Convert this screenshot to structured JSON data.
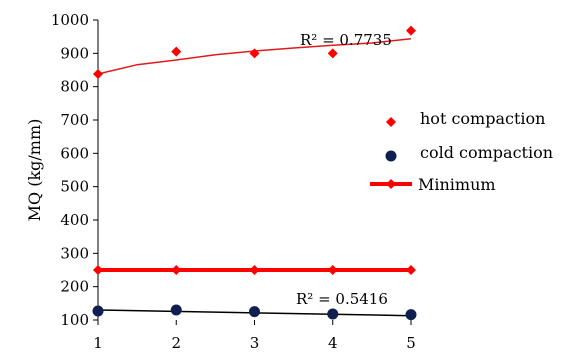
{
  "chart_data": {
    "type": "scatter",
    "title": "",
    "xlabel": "",
    "ylabel": "MQ (kg/mm)",
    "xlim": [
      1,
      5
    ],
    "ylim": [
      100,
      1000
    ],
    "xticks": [
      "1",
      "2",
      "3",
      "4",
      "5"
    ],
    "yticks": [
      "100",
      "200",
      "300",
      "400",
      "500",
      "600",
      "700",
      "800",
      "900",
      "1000"
    ],
    "grid": false,
    "legend_position": "right",
    "series": [
      {
        "name": "hot compaction",
        "marker": "diamond",
        "color": "#ff0000",
        "x": [
          1,
          2,
          3,
          4,
          5
        ],
        "y": [
          838,
          905,
          900,
          900,
          968
        ]
      },
      {
        "name": "cold compaction",
        "marker": "circle",
        "color": "#0f1f4f",
        "x": [
          1,
          2,
          3,
          4,
          5
        ],
        "y": [
          127,
          130,
          125,
          118,
          116
        ]
      },
      {
        "name": "Minimum",
        "marker": "diamond",
        "line": true,
        "color": "#ff0000",
        "x": [
          1,
          2,
          3,
          4,
          5
        ],
        "y": [
          250,
          250,
          250,
          250,
          250
        ]
      }
    ],
    "trendlines": [
      {
        "series": "hot compaction",
        "kind": "logarithmic",
        "color": "#e31a1c",
        "x": [
          1,
          1.5,
          2,
          2.5,
          3,
          3.5,
          4,
          4.5,
          5
        ],
        "y": [
          838,
          866,
          880,
          896,
          907,
          916,
          924,
          931,
          944
        ],
        "label": "R² = 0.7735"
      },
      {
        "series": "cold compaction",
        "kind": "linear",
        "color": "#000000",
        "x": [
          1,
          5
        ],
        "y": [
          130,
          113
        ],
        "label": "R² = 0.5416"
      }
    ]
  }
}
